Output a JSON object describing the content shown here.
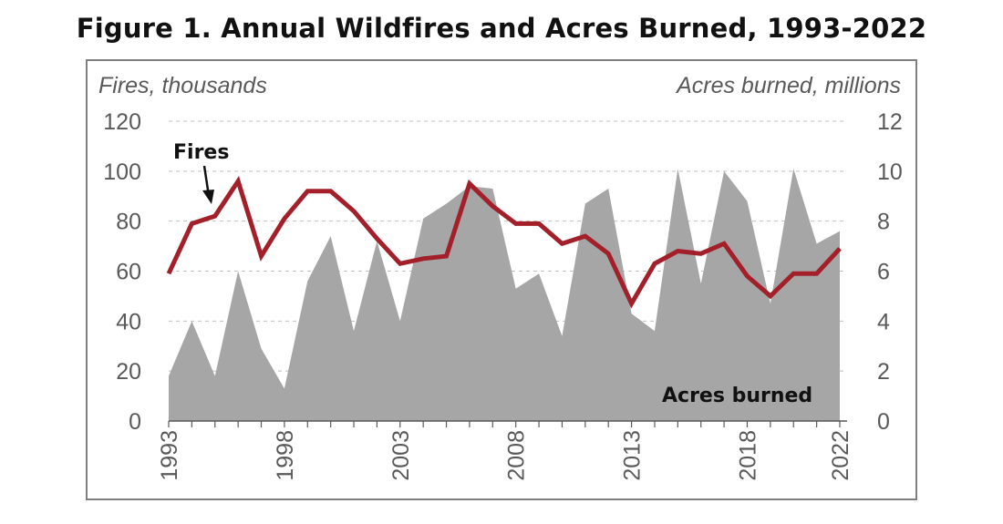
{
  "chart_data": {
    "type": "area",
    "title": "Figure 1. Annual Wildfires and Acres Burned, 1993-2022",
    "y_left_label": "Fires, thousands",
    "y_right_label": "Acres burned, millions",
    "y_left_ticks": [
      "0",
      "20",
      "40",
      "60",
      "80",
      "100",
      "120"
    ],
    "y_right_ticks": [
      "0",
      "2",
      "4",
      "6",
      "8",
      "10",
      "12"
    ],
    "x_tick_labels": [
      "1993",
      "1998",
      "2003",
      "2008",
      "2013",
      "2018",
      "2022"
    ],
    "ylim_left": [
      0,
      120
    ],
    "ylim_right": [
      0,
      12
    ],
    "grid": "horizontal dashed",
    "x": [
      1993,
      1994,
      1995,
      1996,
      1997,
      1998,
      1999,
      2000,
      2001,
      2002,
      2003,
      2004,
      2005,
      2006,
      2007,
      2008,
      2009,
      2010,
      2011,
      2012,
      2013,
      2014,
      2015,
      2016,
      2017,
      2018,
      2019,
      2020,
      2021,
      2022
    ],
    "series": [
      {
        "name": "Acres burned",
        "axis": "right",
        "type": "area",
        "color": "#a6a6a6",
        "values": [
          1.8,
          4.0,
          1.8,
          6.0,
          2.9,
          1.3,
          5.6,
          7.4,
          3.6,
          7.2,
          4.0,
          8.1,
          8.7,
          9.4,
          9.3,
          5.3,
          5.9,
          3.4,
          8.7,
          9.3,
          4.3,
          3.6,
          10.1,
          5.5,
          10.0,
          8.8,
          4.7,
          10.1,
          7.1,
          7.6
        ]
      },
      {
        "name": "Fires",
        "axis": "left",
        "type": "line",
        "color": "#a3202a",
        "values": [
          59,
          79,
          82,
          96,
          66,
          81,
          92,
          92,
          84,
          73,
          63,
          65,
          66,
          95,
          86,
          79,
          79,
          71,
          74,
          67,
          47,
          63,
          68,
          67,
          71,
          58,
          50,
          59,
          59,
          69
        ]
      }
    ]
  }
}
